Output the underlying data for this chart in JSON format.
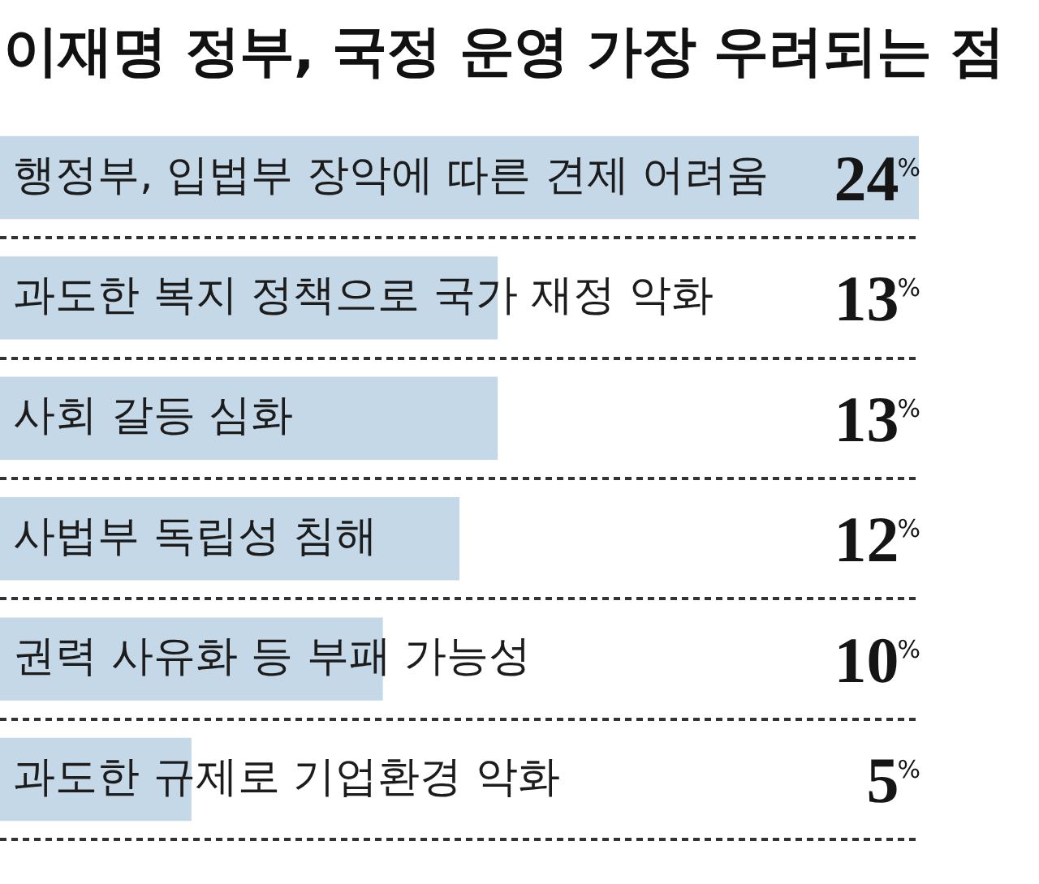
{
  "chart_data": {
    "type": "bar",
    "orientation": "horizontal",
    "title": "이재명 정부, 국정 운영 가장 우려되는 점",
    "categories": [
      "행정부, 입법부 장악에 따른 견제 어려움",
      "과도한 복지 정책으로 국가 재정 악화",
      "사회 갈등 심화",
      "사법부 독립성 침해",
      "권력 사유화 등 부패 가능성",
      "과도한 규제로 기업환경 악화"
    ],
    "values": [
      24,
      13,
      13,
      12,
      10,
      5
    ],
    "color": "#c5d8e7",
    "value_labels": [
      "24$^{%}$",
      "13$^{%}$",
      "13$^{%}$",
      "12$^{%}$",
      "10$^{%}$",
      "5$^{%}$"
    ],
    "tick_labels": "y",
    "grid": "y"
  }
}
